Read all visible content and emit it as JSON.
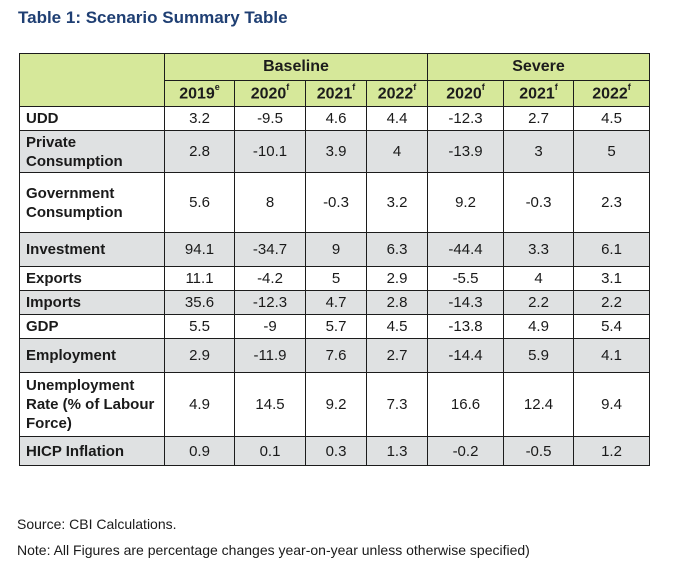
{
  "title": "Table 1: Scenario Summary Table",
  "groups": {
    "baseline": "Baseline",
    "severe": "Severe"
  },
  "years": [
    {
      "year": "2019",
      "sup": "e"
    },
    {
      "year": "2020",
      "sup": "f"
    },
    {
      "year": "2021",
      "sup": "f"
    },
    {
      "year": "2022",
      "sup": "f"
    },
    {
      "year": "2020",
      "sup": "f"
    },
    {
      "year": "2021",
      "sup": "f"
    },
    {
      "year": "2022",
      "sup": "f"
    }
  ],
  "rows": [
    {
      "label": "UDD",
      "values": [
        "3.2",
        "-9.5",
        "4.6",
        "4.4",
        "-12.3",
        "2.7",
        "4.5"
      ]
    },
    {
      "label": "Private Consumption",
      "values": [
        "2.8",
        "-10.1",
        "3.9",
        "4",
        "-13.9",
        "3",
        "5"
      ]
    },
    {
      "label": "Government Consumption",
      "values": [
        "5.6",
        "8",
        "-0.3",
        "3.2",
        "9.2",
        "-0.3",
        "2.3"
      ]
    },
    {
      "label": "Investment",
      "values": [
        "94.1",
        "-34.7",
        "9",
        "6.3",
        "-44.4",
        "3.3",
        "6.1"
      ]
    },
    {
      "label": "Exports",
      "values": [
        "11.1",
        "-4.2",
        "5",
        "2.9",
        "-5.5",
        "4",
        "3.1"
      ]
    },
    {
      "label": "Imports",
      "values": [
        "35.6",
        "-12.3",
        "4.7",
        "2.8",
        "-14.3",
        "2.2",
        "2.2"
      ]
    },
    {
      "label": "GDP",
      "values": [
        "5.5",
        "-9",
        "5.7",
        "4.5",
        "-13.8",
        "4.9",
        "5.4"
      ]
    },
    {
      "label": "Employment",
      "values": [
        "2.9",
        "-11.9",
        "7.6",
        "2.7",
        "-14.4",
        "5.9",
        "4.1"
      ]
    },
    {
      "label": "Unemployment Rate (% of Labour Force)",
      "values": [
        "4.9",
        "14.5",
        "9.2",
        "7.3",
        "16.6",
        "12.4",
        "9.4"
      ]
    },
    {
      "label": "HICP Inflation",
      "values": [
        "0.9",
        "0.1",
        "0.3",
        "1.3",
        "-0.2",
        "-0.5",
        "1.2"
      ]
    }
  ],
  "source": "Source: CBI Calculations.",
  "note": "Note: All Figures are percentage changes year-on-year unless otherwise specified)"
}
